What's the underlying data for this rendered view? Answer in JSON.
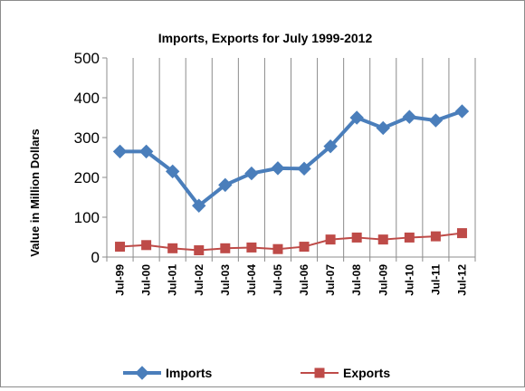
{
  "chart_data": {
    "type": "line",
    "title": "Imports, Exports for July 1999-2012",
    "ylabel": "Value in  Million  Dollars",
    "xlabel": "",
    "categories": [
      "Jul-99",
      "Jul-00",
      "Jul-01",
      "Jul-02",
      "Jul-03",
      "Jul-04",
      "Jul-05",
      "Jul-06",
      "Jul-07",
      "Jul-08",
      "Jul-09",
      "Jul-10",
      "Jul-11",
      "Jul-12"
    ],
    "ylim": [
      0,
      500
    ],
    "yticks": [
      "0",
      "100",
      "200",
      "300",
      "400",
      "500"
    ],
    "grid": "vertical",
    "legend_position": "bottom",
    "series": [
      {
        "name": "Imports",
        "color": "#4a7ebb",
        "marker": "diamond",
        "values": [
          265,
          265,
          215,
          129,
          181,
          210,
          223,
          222,
          278,
          350,
          324,
          352,
          343,
          366
        ]
      },
      {
        "name": "Exports",
        "color": "#be4b48",
        "marker": "square",
        "values": [
          26,
          30,
          22,
          17,
          22,
          24,
          20,
          26,
          44,
          49,
          44,
          49,
          52,
          60
        ]
      }
    ]
  }
}
